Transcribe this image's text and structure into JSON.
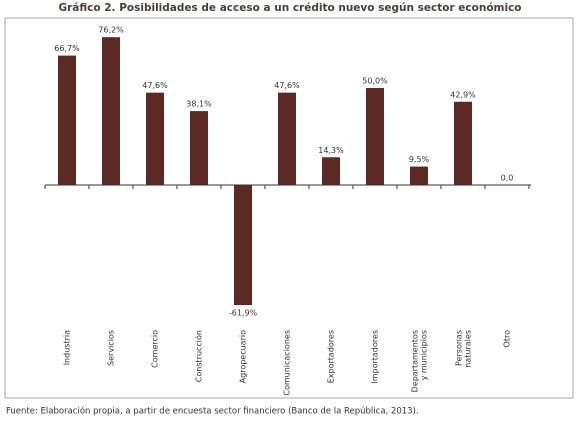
{
  "chart_data": {
    "type": "bar",
    "title": "Gráfico 2. Posibilidades de acceso a un crédito nuevo según sector económico",
    "categories": [
      "Industria",
      "Servicios",
      "Comercio",
      "Construcción",
      "Agropecuario",
      "Comunicaciones",
      "Exportadores",
      "Importadores",
      "Departamentos y municipios",
      "Personas naturales",
      "Otro"
    ],
    "values": [
      66.7,
      76.2,
      47.6,
      38.1,
      -61.9,
      47.6,
      14.3,
      50.0,
      9.5,
      42.9,
      0.0
    ],
    "value_labels": [
      "66,7%",
      "76,2%",
      "47,6%",
      "38,1%",
      "-61,9%",
      "47,6%",
      "14,3%",
      "50,0%",
      "9,5%",
      "42,9%",
      "0,0"
    ],
    "color": "#5c2a22",
    "source": "Fuente: Elaboración propia, a partir de encuesta sector financiero (Banco de la República, 2013)."
  }
}
